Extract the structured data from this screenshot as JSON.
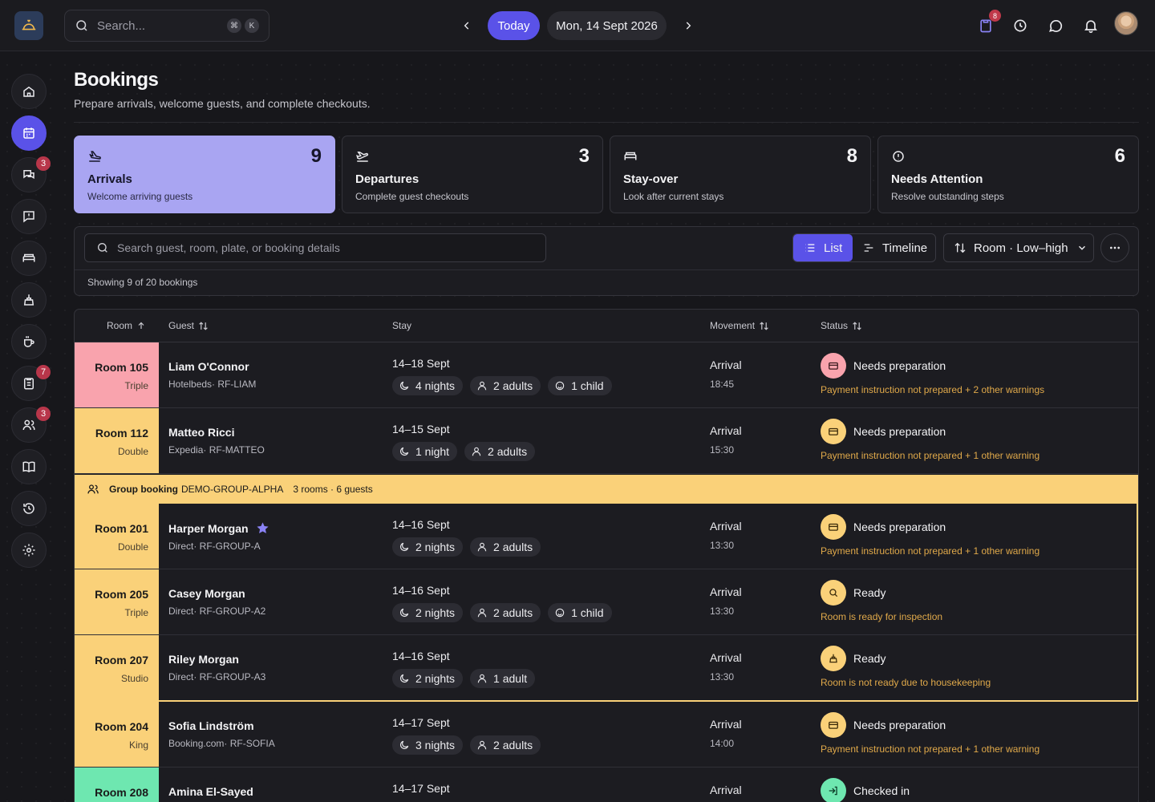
{
  "topbar": {
    "search_placeholder": "Search...",
    "kbd1": "⌘",
    "kbd2": "K",
    "today_label": "Today",
    "date_label": "Mon, 14 Sept 2026",
    "notif_badge": "8"
  },
  "sidebar": {
    "badges": {
      "chat": "3",
      "tasks": "7",
      "guests": "3"
    }
  },
  "header": {
    "title": "Bookings",
    "subtitle": "Prepare arrivals, welcome guests, and complete checkouts."
  },
  "stats": [
    {
      "count": "9",
      "title": "Arrivals",
      "desc": "Welcome arriving guests"
    },
    {
      "count": "3",
      "title": "Departures",
      "desc": "Complete guest checkouts"
    },
    {
      "count": "8",
      "title": "Stay-over",
      "desc": "Look after current stays"
    },
    {
      "count": "6",
      "title": "Needs Attention",
      "desc": "Resolve outstanding steps"
    }
  ],
  "toolbar": {
    "search_placeholder": "Search guest, room, plate, or booking details",
    "list_label": "List",
    "timeline_label": "Timeline",
    "sort_label": "Room · Low–high",
    "showing": "Showing 9 of 20 bookings"
  },
  "columns": {
    "room": "Room",
    "guest": "Guest",
    "stay": "Stay",
    "movement": "Movement",
    "status": "Status"
  },
  "group": {
    "label": "Group booking",
    "code": "DEMO-GROUP-ALPHA",
    "meta": "3 rooms · 6 guests"
  },
  "colors": {
    "pink": "#f9a3ad",
    "yellow": "#fad179",
    "green": "#6ee7b0",
    "accent": "#5a52e8"
  },
  "rows": [
    {
      "room": "Room 105",
      "type": "Triple",
      "guest": "Liam O'Connor",
      "source": "Hotelbeds· RF-LIAM",
      "dates": "14–18 Sept",
      "nights": "4 nights",
      "adults": "2 adults",
      "child": "1 child",
      "movement": "Arrival",
      "time": "18:45",
      "status": "Needs preparation",
      "note": "Payment instruction not prepared + 2 other warnings"
    },
    {
      "room": "Room 112",
      "type": "Double",
      "guest": "Matteo Ricci",
      "source": "Expedia· RF-MATTEO",
      "dates": "14–15 Sept",
      "nights": "1 night",
      "adults": "2 adults",
      "movement": "Arrival",
      "time": "15:30",
      "status": "Needs preparation",
      "note": "Payment instruction not prepared + 1 other warning"
    },
    {
      "room": "Room 201",
      "type": "Double",
      "guest": "Harper Morgan",
      "source": "Direct· RF-GROUP-A",
      "dates": "14–16 Sept",
      "nights": "2 nights",
      "adults": "2 adults",
      "movement": "Arrival",
      "time": "13:30",
      "status": "Needs preparation",
      "note": "Payment instruction not prepared + 1 other warning"
    },
    {
      "room": "Room 205",
      "type": "Triple",
      "guest": "Casey Morgan",
      "source": "Direct· RF-GROUP-A2",
      "dates": "14–16 Sept",
      "nights": "2 nights",
      "adults": "2 adults",
      "child": "1 child",
      "movement": "Arrival",
      "time": "13:30",
      "status": "Ready",
      "note": "Room is ready for inspection"
    },
    {
      "room": "Room 207",
      "type": "Studio",
      "guest": "Riley Morgan",
      "source": "Direct· RF-GROUP-A3",
      "dates": "14–16 Sept",
      "nights": "2 nights",
      "adults": "1 adult",
      "movement": "Arrival",
      "time": "13:30",
      "status": "Ready",
      "note": "Room is not ready due to housekeeping"
    },
    {
      "room": "Room 204",
      "type": "King",
      "guest": "Sofia Lindström",
      "source": "Booking.com· RF-SOFIA",
      "dates": "14–17 Sept",
      "nights": "3 nights",
      "adults": "2 adults",
      "movement": "Arrival",
      "time": "14:00",
      "status": "Needs preparation",
      "note": "Payment instruction not prepared + 1 other warning"
    },
    {
      "room": "Room 208",
      "guest": "Amina El-Sayed",
      "dates": "14–17 Sept",
      "movement": "Arrival",
      "status": "Checked in"
    }
  ]
}
